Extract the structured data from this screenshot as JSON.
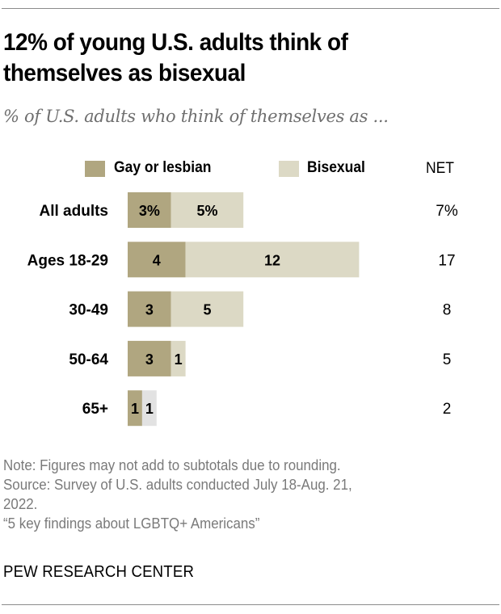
{
  "title": "12% of young U.S. adults think of themselves as bisexual",
  "title_lines": [
    "12% of young U.S. adults think of",
    "themselves as bisexual"
  ],
  "subtitle": "% of U.S. adults who think of themselves as ...",
  "legend": {
    "items": [
      {
        "name": "Gay or lesbian",
        "color": "#b0a680"
      },
      {
        "name": "Bisexual",
        "color": "#dcd9c5"
      }
    ],
    "net_header": "NET"
  },
  "chart_data": {
    "type": "bar",
    "orientation": "horizontal",
    "stacked": true,
    "title": "12% of young U.S. adults think of themselves as bisexual",
    "subtitle": "% of U.S. adults who think of themselves as ...",
    "categories": [
      "All adults",
      "Ages 18-29",
      "30-49",
      "50-64",
      "65+"
    ],
    "series": [
      {
        "name": "Gay or lesbian",
        "color": "#b0a680",
        "values": [
          3,
          4,
          3,
          3,
          1
        ],
        "labels": [
          "3%",
          "4",
          "3",
          "3",
          "1"
        ]
      },
      {
        "name": "Bisexual",
        "color": "#dcd9c5",
        "values": [
          5,
          12,
          5,
          1,
          1
        ],
        "labels": [
          "5%",
          "12",
          "5",
          "1",
          "1"
        ]
      }
    ],
    "net": {
      "header": "NET",
      "values": [
        7,
        17,
        8,
        5,
        2
      ],
      "labels": [
        "7%",
        "17",
        "8",
        "5",
        "2"
      ]
    },
    "segment_colors_override": {
      "65+": {
        "Bisexual": "#e2e2e2"
      }
    },
    "xlabel": "",
    "ylabel": "",
    "xlim": [
      0,
      16
    ],
    "grid": false,
    "legend_position": "top"
  },
  "notes": [
    "Note: Figures may not add to subtotals due to rounding.",
    "Source: Survey of U.S. adults conducted July 18-Aug. 21,",
    "2022.",
    "“5 key findings about LGBTQ+ Americans”"
  ],
  "brand": "PEW RESEARCH CENTER"
}
